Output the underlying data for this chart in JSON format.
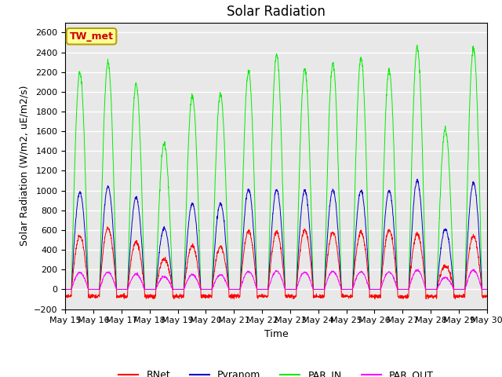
{
  "title": "Solar Radiation",
  "ylabel": "Solar Radiation (W/m2, uE/m2/s)",
  "xlabel": "Time",
  "ylim": [
    -200,
    2700
  ],
  "yticks": [
    -200,
    0,
    200,
    400,
    600,
    800,
    1000,
    1200,
    1400,
    1600,
    1800,
    2000,
    2200,
    2400,
    2600
  ],
  "xtick_labels": [
    "May 15",
    "May 16",
    "May 17",
    "May 18",
    "May 19",
    "May 20",
    "May 21",
    "May 22",
    "May 23",
    "May 24",
    "May 25",
    "May 26",
    "May 27",
    "May 28",
    "May 29",
    "May 30"
  ],
  "n_days": 16,
  "points_per_day": 144,
  "series_colors": {
    "RNet": "#ff0000",
    "Pyranom": "#0000cc",
    "PAR_IN": "#00ee00",
    "PAR_OUT": "#ff00ff"
  },
  "legend_labels": [
    "RNet",
    "Pyranom",
    "PAR_IN",
    "PAR_OUT"
  ],
  "station_label": "TW_met",
  "station_box_facecolor": "#ffff99",
  "station_box_edgecolor": "#b8a000",
  "station_text_color": "#cc0000",
  "plot_bg_color": "#e8e8e8",
  "fig_bg_color": "#ffffff",
  "grid_color": "#ffffff",
  "title_fontsize": 12,
  "label_fontsize": 9,
  "tick_fontsize": 8
}
